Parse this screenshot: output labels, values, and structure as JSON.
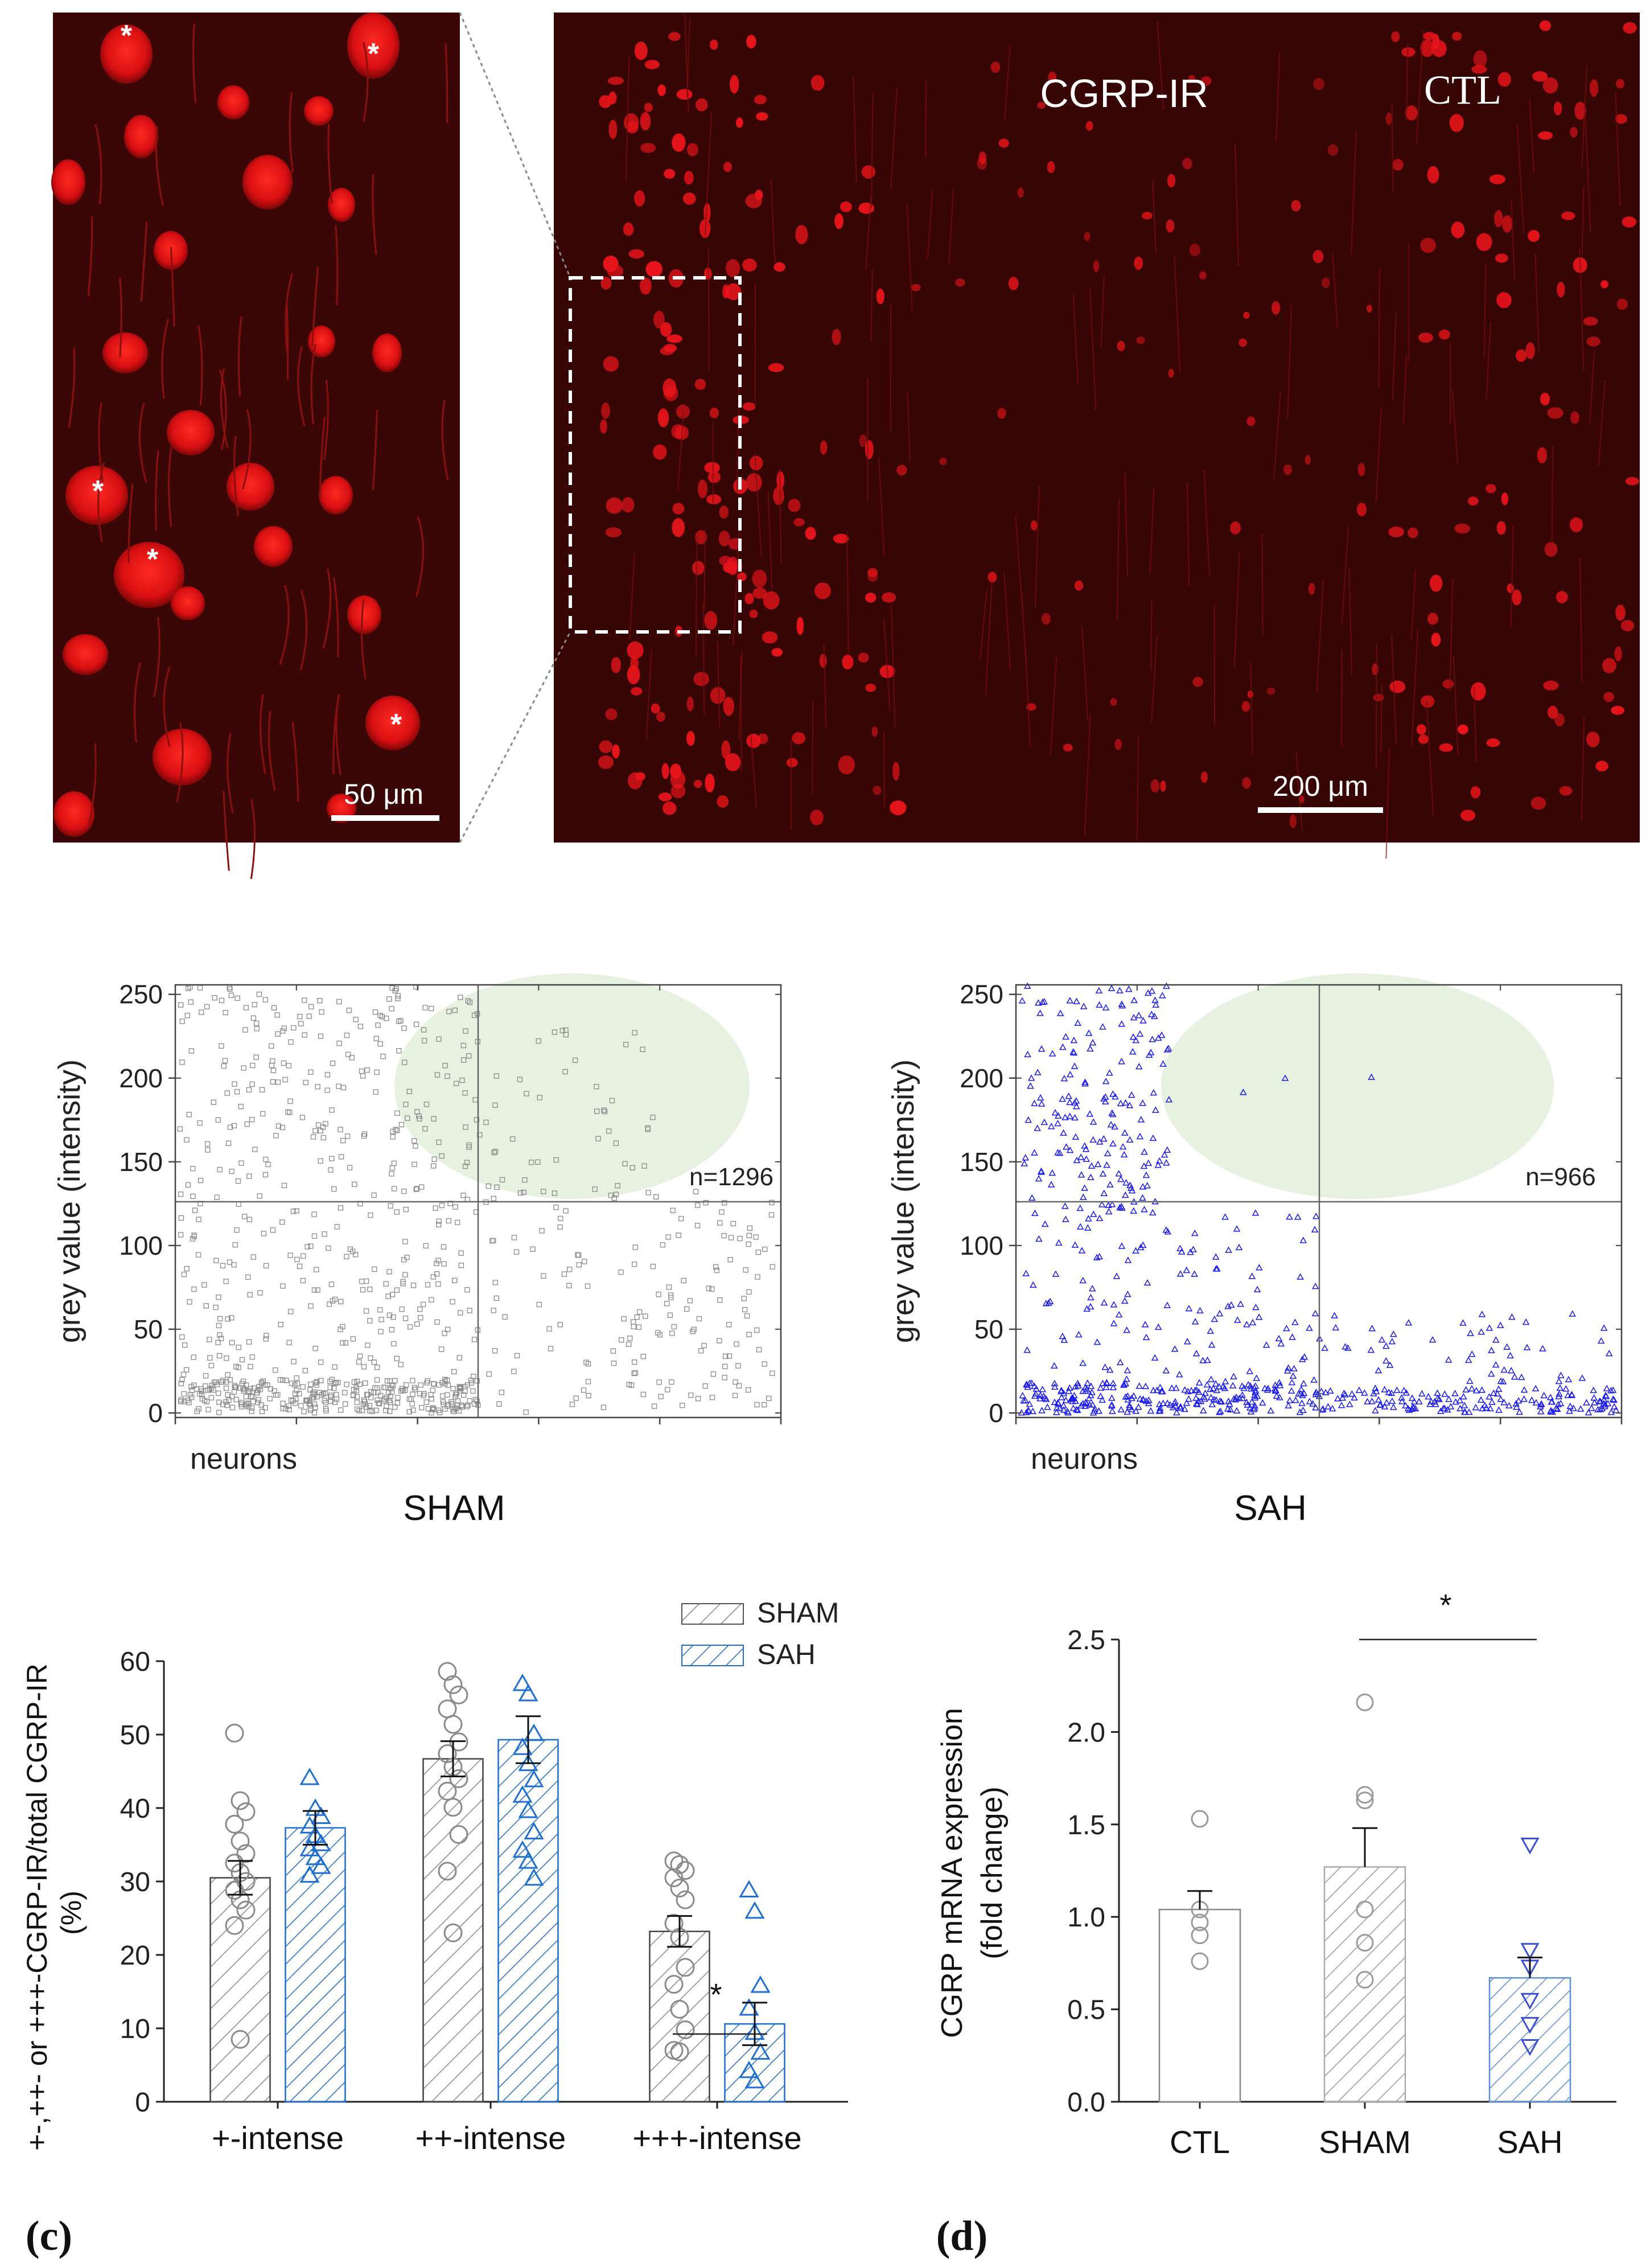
{
  "micrograph": {
    "inset_scale": "50 μm",
    "main_scale": "200 μm",
    "stain_label": "CGRP-IR",
    "group_label": "CTL",
    "star": "*"
  },
  "colors": {
    "sham": "#8a8a8a",
    "sah": "#1f6fd1",
    "sah_scatter": "#1a1aee",
    "ellipse": "#e6f1e0",
    "tissue_bg": "#3a0606",
    "neuron": "#e8141a"
  },
  "chart_data": [
    {
      "id": "sham-scatter",
      "type": "scatter",
      "title": "",
      "xlabel": "SHAM",
      "x_text": "neurons",
      "ylabel": "grey value (intensity)",
      "ylim": [
        0,
        255
      ],
      "yticks": [
        0,
        50,
        100,
        150,
        200,
        250
      ],
      "n_points": 1296,
      "annotation": "n=1296",
      "threshold_y": 128,
      "marker": "square",
      "description": "points densely distributed across 0-255 on the left half (x<0.5); sparser on the right half"
    },
    {
      "id": "sah-scatter",
      "type": "scatter",
      "title": "",
      "xlabel": "SAH",
      "x_text": "neurons",
      "ylabel": "grey value (intensity)",
      "ylim": [
        0,
        255
      ],
      "yticks": [
        0,
        50,
        100,
        150,
        200,
        250
      ],
      "n_points": 966,
      "annotation": "n=966",
      "threshold_y": 128,
      "marker": "triangle",
      "description": "high-intensity points confined to left quarter; most points below 60 spread across x"
    },
    {
      "id": "panel-c",
      "type": "bar",
      "panel_label": "(c)",
      "categories": [
        "+-intense",
        "++-intense",
        "+++-intense"
      ],
      "ylabel": "+-,++- or +++-CGRP-IR/total CGRP-IR",
      "ylabel2": "(%)",
      "ylim": [
        0,
        60
      ],
      "yticks": [
        0,
        10,
        20,
        30,
        40,
        50,
        60
      ],
      "legend": [
        "SHAM",
        "SAH"
      ],
      "series": [
        {
          "name": "SHAM",
          "values": [
            30.5,
            46.7,
            23.2
          ],
          "errors": [
            2.3,
            2.4,
            2.1
          ],
          "points": [
            [
              50.2,
              41.0,
              39.5,
              37.8,
              35.5,
              33.8,
              32.5,
              31.2,
              30.0,
              28.8,
              27.5,
              26.1,
              24.0,
              8.5
            ],
            [
              58.6,
              56.8,
              55.4,
              53.5,
              51.4,
              49.0,
              47.4,
              45.6,
              44.0,
              42.3,
              40.1,
              36.4,
              31.4,
              23.0
            ],
            [
              32.8,
              32.3,
              31.5,
              30.5,
              29.1,
              27.5,
              24.3,
              22.4,
              18.3,
              16.0,
              12.6,
              9.8,
              7.0,
              6.8
            ]
          ]
        },
        {
          "name": "SAH",
          "values": [
            37.3,
            49.3,
            10.6
          ],
          "errors": [
            2.3,
            3.2,
            2.9
          ],
          "points": [
            [
              44.1,
              39.9,
              38.8,
              37.5,
              36.2,
              35.1,
              34.4,
              33.2,
              32.0,
              30.8
            ],
            [
              56.9,
              55.5,
              50.1,
              48.2,
              46.0,
              43.8,
              41.7,
              39.6,
              36.7,
              34.2,
              32.7,
              30.4
            ],
            [
              28.8,
              25.9,
              15.8,
              12.7,
              9.4,
              6.7,
              4.2,
              2.8
            ]
          ]
        }
      ],
      "significance": {
        "pair": "+++-intense",
        "label": "*"
      }
    },
    {
      "id": "panel-d",
      "type": "bar",
      "panel_label": "(d)",
      "categories": [
        "CTL",
        "SHAM",
        "SAH"
      ],
      "ylabel": "CGRP mRNA expression",
      "ylabel2": "(fold change)",
      "ylim": [
        0,
        2.5
      ],
      "yticks": [
        "0.0",
        "0.5",
        "1.0",
        "1.5",
        "2.0",
        "2.5"
      ],
      "values": [
        1.04,
        1.27,
        0.67
      ],
      "errors": [
        0.1,
        0.21,
        0.11
      ],
      "points": [
        [
          1.53,
          1.04,
          0.97,
          0.9,
          0.76
        ],
        [
          2.16,
          1.66,
          1.63,
          1.04,
          0.86,
          0.66
        ],
        [
          1.39,
          0.82,
          0.73,
          0.55,
          0.42,
          0.3
        ]
      ],
      "significance": {
        "pair": [
          "SHAM",
          "SAH"
        ],
        "label": "*"
      }
    }
  ]
}
